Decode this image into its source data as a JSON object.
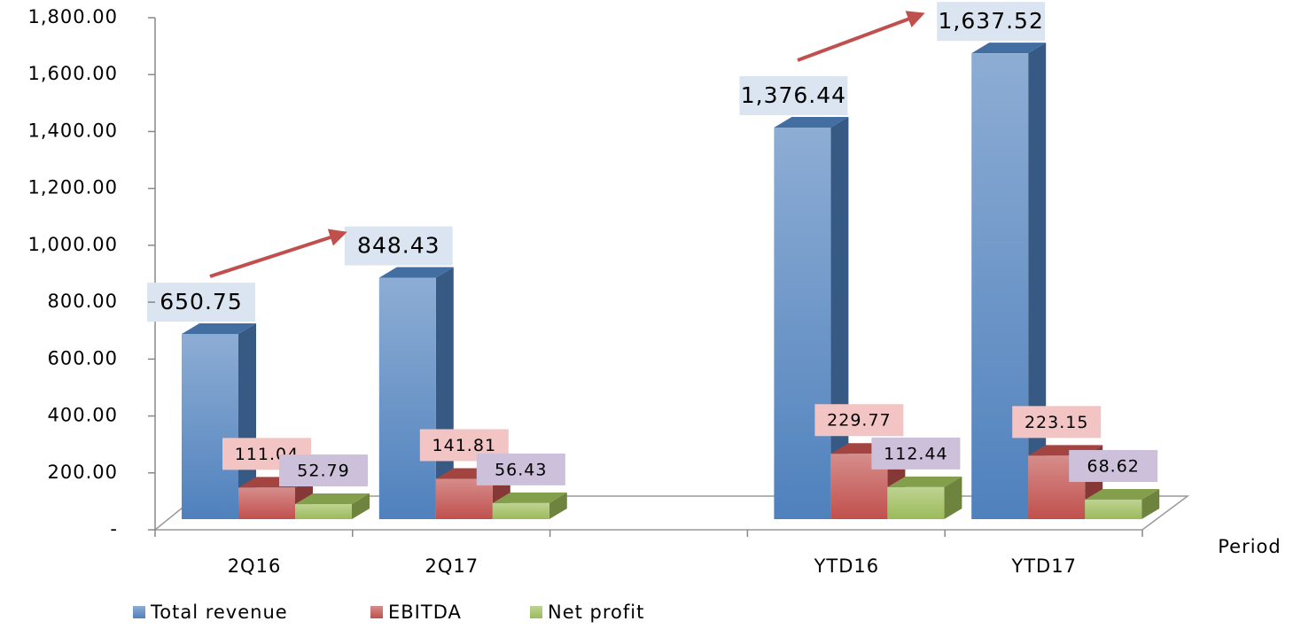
{
  "chart_data": {
    "type": "bar3d",
    "x_label": "Period",
    "categories": [
      "2Q16",
      "2Q17",
      null,
      "YTD16",
      "YTD17"
    ],
    "series": [
      {
        "name": "Total revenue",
        "color": "#4f81bd",
        "label_color": "#dbe5f1",
        "values": [
          650.75,
          848.43,
          null,
          1376.44,
          1637.52
        ],
        "value_labels": [
          "650.75",
          "848.43",
          null,
          "1,376.44",
          "1,637.52"
        ]
      },
      {
        "name": "EBITDA",
        "color": "#c0504d",
        "label_color": "#f2c4c3",
        "values": [
          111.04,
          141.81,
          null,
          229.77,
          223.15
        ],
        "value_labels": [
          "111.04",
          "141.81",
          null,
          "229.77",
          "223.15"
        ]
      },
      {
        "name": "Net profit",
        "color": "#9bbb59",
        "label_color": "#ccc0da",
        "values": [
          52.79,
          56.43,
          null,
          112.44,
          68.62
        ],
        "value_labels": [
          "52.79",
          "56.43",
          null,
          "112.44",
          "68.62"
        ]
      }
    ],
    "ylim": [
      0,
      1800
    ],
    "yticks": [
      {
        "value": 0,
        "label": "-"
      },
      {
        "value": 200,
        "label": "200.00"
      },
      {
        "value": 400,
        "label": "400.00"
      },
      {
        "value": 600,
        "label": "600.00"
      },
      {
        "value": 800,
        "label": "800.00"
      },
      {
        "value": 1000,
        "label": "1,000.00"
      },
      {
        "value": 1200,
        "label": "1,200.00"
      },
      {
        "value": 1400,
        "label": "1,400.00"
      },
      {
        "value": 1600,
        "label": "1,600.00"
      },
      {
        "value": 1800,
        "label": "1,800.00"
      }
    ],
    "legend": "bottom-left"
  }
}
